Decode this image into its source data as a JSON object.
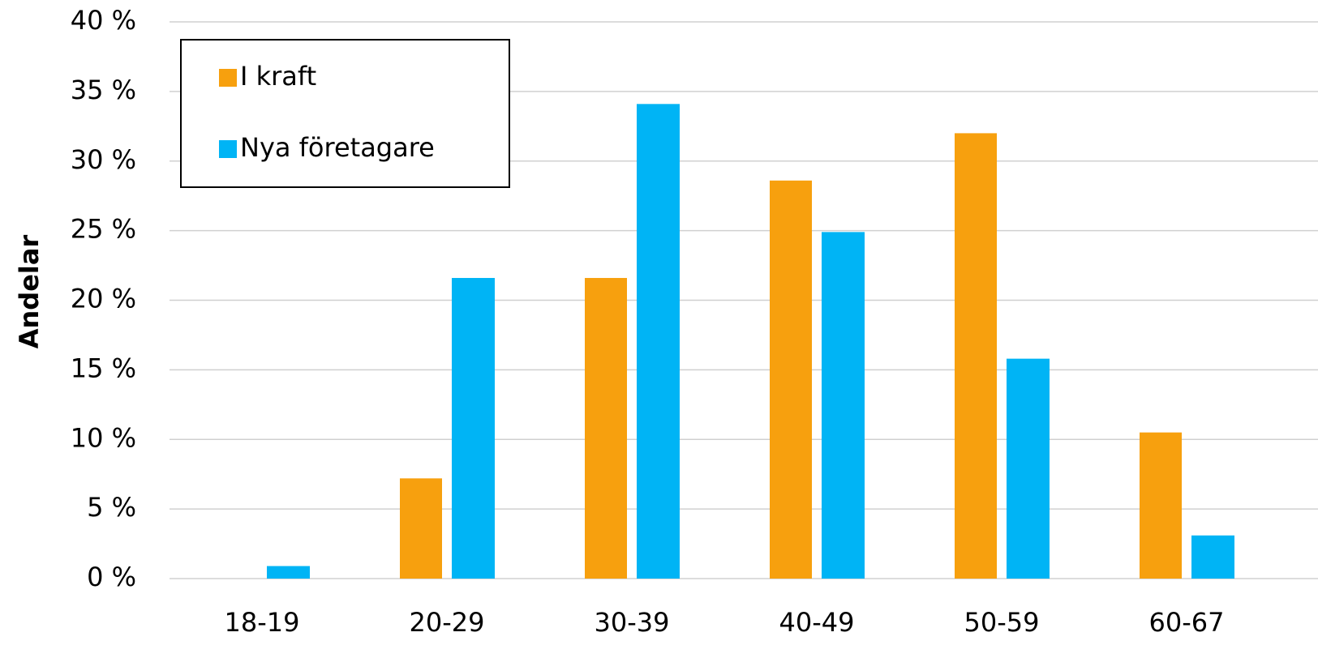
{
  "chart_data": {
    "type": "bar",
    "y_label": "Andelar",
    "categories": [
      "18-19",
      "20-29",
      "30-39",
      "40-49",
      "50-59",
      "60-67"
    ],
    "series": [
      {
        "name": "I kraft",
        "color": "#f7a00e",
        "values": [
          0,
          7.2,
          21.6,
          28.6,
          32.0,
          10.5
        ]
      },
      {
        "name": "Nya företagare",
        "color": "#00b4f5",
        "values": [
          0.9,
          21.6,
          34.1,
          24.9,
          15.8,
          3.1
        ]
      }
    ],
    "ylim": [
      0,
      40
    ],
    "yticks": [
      {
        "value": 0,
        "label": "0 %"
      },
      {
        "value": 5,
        "label": "5 %"
      },
      {
        "value": 10,
        "label": "10 %"
      },
      {
        "value": 15,
        "label": "15 %"
      },
      {
        "value": 20,
        "label": "20 %"
      },
      {
        "value": 25,
        "label": "25 %"
      },
      {
        "value": 30,
        "label": "30 %"
      },
      {
        "value": 35,
        "label": "35 %"
      },
      {
        "value": 40,
        "label": "40 %"
      }
    ],
    "grid": true,
    "legend": "top-left"
  }
}
